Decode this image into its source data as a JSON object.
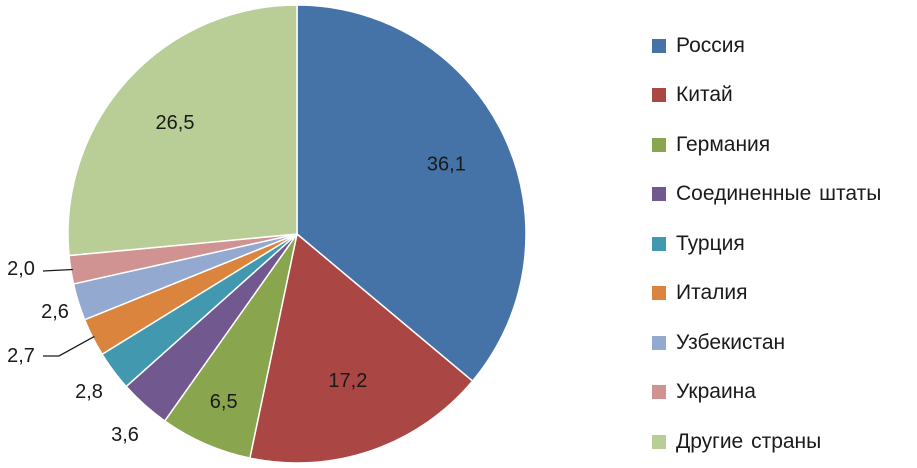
{
  "chart_data": {
    "type": "pie",
    "categories": [
      "Россия",
      "Китай",
      "Германия",
      "Соединенные  штаты",
      "Турция",
      "Италия",
      "Узбекистан",
      "Украина",
      "Другие страны"
    ],
    "values": [
      36.1,
      17.2,
      6.5,
      3.6,
      2.8,
      2.7,
      2.6,
      2.0,
      26.5
    ],
    "labels": [
      "36,1",
      "17,2",
      "6,5",
      "3,6",
      "2,8",
      "2,7",
      "2,6",
      "2,0",
      "26,5"
    ],
    "colors": [
      "#4572A7",
      "#AA4643",
      "#89A54E",
      "#71588F",
      "#4198AF",
      "#DB843D",
      "#93A9CF",
      "#D19392",
      "#B9CD96"
    ],
    "legend_position": "right",
    "start_angle": "12 o'clock",
    "direction": "clockwise"
  },
  "legend": {
    "items": [
      {
        "label": "Россия",
        "color": "#4572A7"
      },
      {
        "label": "Китай",
        "color": "#AA4643"
      },
      {
        "label": "Германия",
        "color": "#89A54E"
      },
      {
        "label": "Соединенные  штаты",
        "color": "#71588F"
      },
      {
        "label": "Турция",
        "color": "#4198AF"
      },
      {
        "label": "Италия",
        "color": "#DB843D"
      },
      {
        "label": "Узбекистан",
        "color": "#93A9CF"
      },
      {
        "label": "Украина",
        "color": "#D19392"
      },
      {
        "label": "Другие страны",
        "color": "#B9CD96"
      }
    ]
  }
}
